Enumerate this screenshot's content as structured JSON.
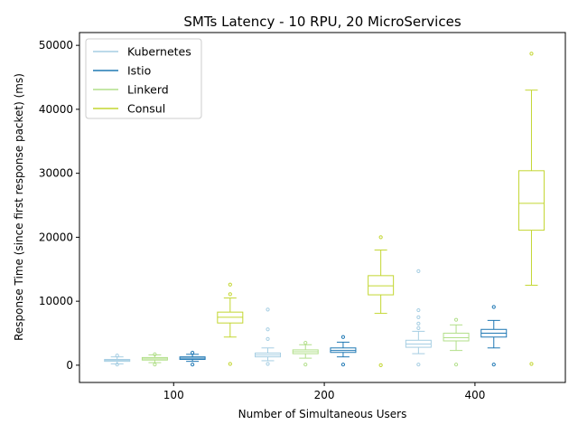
{
  "chart_data": {
    "type": "box",
    "title": "SMTs Latency - 10 RPU, 20 MicroServices",
    "xlabel": "Number of Simultaneous Users",
    "ylabel": "Response Time (since first response packet) (ms)",
    "ylim": [
      -2700,
      52000
    ],
    "y_ticks": [
      0,
      10000,
      20000,
      30000,
      40000,
      50000
    ],
    "categories": [
      "100",
      "200",
      "400"
    ],
    "legend_position": "upper-left",
    "grid": false,
    "series": [
      {
        "name": "Kubernetes",
        "color": "#a6cee3",
        "boxes": [
          {
            "whisker_low": 200,
            "q1": 600,
            "median": 750,
            "q3": 900,
            "whisker_high": 1300,
            "outliers": [
              100,
              1500
            ]
          },
          {
            "whisker_low": 700,
            "q1": 1300,
            "median": 1600,
            "q3": 1900,
            "whisker_high": 2700,
            "outliers": [
              200,
              4100,
              5600,
              8700
            ]
          },
          {
            "whisker_low": 1800,
            "q1": 2800,
            "median": 3300,
            "q3": 3900,
            "whisker_high": 5300,
            "outliers": [
              100,
              5800,
              6500,
              7500,
              8600,
              14700
            ]
          }
        ]
      },
      {
        "name": "Istio",
        "color": "#1f78b4",
        "boxes": [
          {
            "whisker_low": 600,
            "q1": 900,
            "median": 1100,
            "q3": 1300,
            "whisker_high": 1700,
            "outliers": [
              100,
              1950
            ]
          },
          {
            "whisker_low": 1300,
            "q1": 2000,
            "median": 2300,
            "q3": 2700,
            "whisker_high": 3600,
            "outliers": [
              100,
              4400
            ]
          },
          {
            "whisker_low": 2700,
            "q1": 4400,
            "median": 5000,
            "q3": 5600,
            "whisker_high": 7000,
            "outliers": [
              100,
              9100
            ]
          }
        ]
      },
      {
        "name": "Linkerd",
        "color": "#b2df8a",
        "boxes": [
          {
            "whisker_low": 400,
            "q1": 800,
            "median": 1000,
            "q3": 1200,
            "whisker_high": 1600,
            "outliers": [
              100,
              1700
            ]
          },
          {
            "whisker_low": 1100,
            "q1": 1800,
            "median": 2100,
            "q3": 2400,
            "whisker_high": 3200,
            "outliers": [
              100,
              3500
            ]
          },
          {
            "whisker_low": 2300,
            "q1": 3800,
            "median": 4300,
            "q3": 5000,
            "whisker_high": 6300,
            "outliers": [
              100,
              7100
            ]
          }
        ]
      },
      {
        "name": "Consul",
        "color": "#c3d631",
        "boxes": [
          {
            "whisker_low": 4400,
            "q1": 6600,
            "median": 7500,
            "q3": 8300,
            "whisker_high": 10500,
            "outliers": [
              200,
              11100,
              12600
            ]
          },
          {
            "whisker_low": 8100,
            "q1": 11000,
            "median": 12400,
            "q3": 14000,
            "whisker_high": 18000,
            "outliers": [
              0,
              20000
            ]
          },
          {
            "whisker_low": 12500,
            "q1": 21100,
            "median": 25300,
            "q3": 30400,
            "whisker_high": 43000,
            "outliers": [
              200,
              48700
            ]
          }
        ]
      }
    ]
  }
}
